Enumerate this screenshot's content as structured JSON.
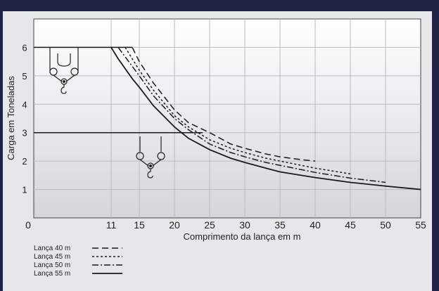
{
  "chart_data": {
    "type": "line",
    "xlabel": "Comprimento da lança em m",
    "ylabel": "Carga em Toneladas",
    "xlim": [
      0,
      55
    ],
    "ylim": [
      0,
      7
    ],
    "x_ticks": [
      0,
      11,
      15,
      20,
      25,
      30,
      35,
      40,
      45,
      50,
      55
    ],
    "y_ticks": [
      1,
      2,
      3,
      4,
      5,
      6
    ],
    "grid": true,
    "legend_position": "bottom-left",
    "colors": {
      "line": "#1a1a1a",
      "plot_bg_top": "#ffffff",
      "plot_bg_bottom": "#d3d6da",
      "frame": "#e6e7e9",
      "page": "#1f2447"
    },
    "series": [
      {
        "name": "Lança 40 m",
        "dash": "dashed",
        "x": [
          14,
          15,
          17,
          20,
          22,
          25,
          28,
          30,
          33,
          35,
          38,
          40
        ],
        "y": [
          6.0,
          5.5,
          4.75,
          3.8,
          3.35,
          3.0,
          2.6,
          2.45,
          2.25,
          2.15,
          2.05,
          2.0
        ]
      },
      {
        "name": "Lança 45 m",
        "dash": "dotted",
        "x": [
          13,
          15,
          17,
          20,
          22,
          25,
          28,
          30,
          33,
          35,
          38,
          40,
          45
        ],
        "y": [
          6.0,
          5.2,
          4.5,
          3.6,
          3.2,
          2.75,
          2.45,
          2.3,
          2.1,
          2.0,
          1.85,
          1.75,
          1.55
        ]
      },
      {
        "name": "Lança 50 m",
        "dash": "dashdot",
        "x": [
          12,
          15,
          17,
          20,
          22,
          25,
          28,
          30,
          33,
          35,
          38,
          40,
          45,
          50
        ],
        "y": [
          6.0,
          5.0,
          4.3,
          3.5,
          3.1,
          2.6,
          2.3,
          2.15,
          1.95,
          1.85,
          1.7,
          1.6,
          1.4,
          1.25
        ]
      },
      {
        "name": "Lança 55 m",
        "dash": "solid",
        "x": [
          11,
          12,
          14,
          15,
          17,
          20,
          22,
          25,
          28,
          30,
          33,
          35,
          38,
          40,
          45,
          50,
          55
        ],
        "y": [
          6.0,
          5.6,
          4.9,
          4.6,
          3.95,
          3.2,
          2.8,
          2.4,
          2.1,
          1.95,
          1.75,
          1.62,
          1.5,
          1.42,
          1.25,
          1.12,
          1.0
        ]
      }
    ],
    "reference_lines": [
      {
        "y": 6,
        "x": [
          0,
          14
        ]
      },
      {
        "y": 3,
        "x": [
          0,
          24
        ]
      }
    ],
    "annotations": [
      {
        "icon": "four-line-hook-block-icon",
        "x": 5,
        "y": 5.1
      },
      {
        "icon": "two-line-hook-block-icon",
        "x": 20,
        "y": 2.0
      }
    ]
  }
}
